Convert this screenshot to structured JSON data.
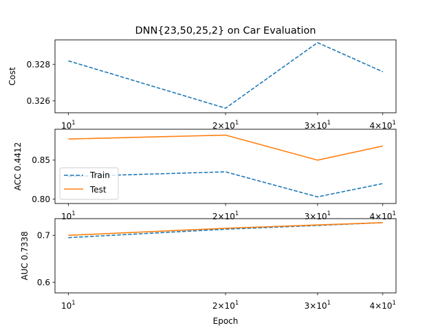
{
  "chart_data": [
    {
      "type": "line",
      "title": "DNN{23,50,25,2} on Car Evaluation",
      "xlabel": "",
      "ylabel": "Cost",
      "xscale": "log",
      "x": [
        10,
        20,
        30,
        40
      ],
      "xtick_labels": [
        {
          "x": 10,
          "base": "10",
          "exp": "1",
          "mant": ""
        },
        {
          "x": 20,
          "base": "10",
          "exp": "1",
          "mant": "2"
        },
        {
          "x": 30,
          "base": "10",
          "exp": "1",
          "mant": "3"
        },
        {
          "x": 40,
          "base": "10",
          "exp": "1",
          "mant": "4"
        }
      ],
      "xlim": [
        9.43,
        42.4
      ],
      "ylim": [
        0.32535,
        0.32935
      ],
      "yticks": [
        0.326,
        0.328
      ],
      "ytick_labels": [
        "0.326",
        "0.328"
      ],
      "grid": false,
      "series": [
        {
          "key": "train",
          "values": [
            0.3282,
            0.3256,
            0.3292,
            0.3276
          ],
          "color": "#1f77b4",
          "dash": "dashed"
        }
      ]
    },
    {
      "type": "line",
      "title": "",
      "xlabel": "",
      "ylabel": "ACC 0.4412",
      "xscale": "log",
      "x": [
        10,
        20,
        30,
        40
      ],
      "xtick_labels": [
        {
          "x": 10,
          "base": "10",
          "exp": "1",
          "mant": ""
        },
        {
          "x": 20,
          "base": "10",
          "exp": "1",
          "mant": "2"
        },
        {
          "x": 30,
          "base": "10",
          "exp": "1",
          "mant": "3"
        },
        {
          "x": 40,
          "base": "10",
          "exp": "1",
          "mant": "4"
        }
      ],
      "xlim": [
        9.43,
        42.4
      ],
      "ylim": [
        0.7945,
        0.8895
      ],
      "yticks": [
        0.8,
        0.85
      ],
      "ytick_labels": [
        "0.80",
        "0.85"
      ],
      "grid": false,
      "legend_position": "center-left",
      "series": [
        {
          "key": "train",
          "name": "Train",
          "values": [
            0.829,
            0.835,
            0.803,
            0.82
          ],
          "color": "#1f77b4",
          "dash": "dashed"
        },
        {
          "key": "test",
          "name": "Test",
          "values": [
            0.877,
            0.882,
            0.85,
            0.868
          ],
          "color": "#ff7f0e",
          "dash": "solid"
        }
      ]
    },
    {
      "type": "line",
      "title": "",
      "xlabel": "Epoch",
      "ylabel": "AUC 0.7338",
      "xscale": "log",
      "x": [
        10,
        20,
        30,
        40
      ],
      "xtick_labels": [
        {
          "x": 10,
          "base": "10",
          "exp": "1",
          "mant": ""
        },
        {
          "x": 20,
          "base": "10",
          "exp": "1",
          "mant": "2"
        },
        {
          "x": 30,
          "base": "10",
          "exp": "1",
          "mant": "3"
        },
        {
          "x": 40,
          "base": "10",
          "exp": "1",
          "mant": "4"
        }
      ],
      "xlim": [
        9.43,
        42.4
      ],
      "ylim": [
        0.5775,
        0.7355
      ],
      "yticks": [
        0.6,
        0.7
      ],
      "ytick_labels": [
        "0.6",
        "0.7"
      ],
      "grid": false,
      "series": [
        {
          "key": "train",
          "values": [
            0.695,
            0.713,
            0.721,
            0.727
          ],
          "color": "#1f77b4",
          "dash": "dashed"
        },
        {
          "key": "test",
          "values": [
            0.7,
            0.715,
            0.722,
            0.727
          ],
          "color": "#ff7f0e",
          "dash": "solid"
        }
      ]
    }
  ]
}
